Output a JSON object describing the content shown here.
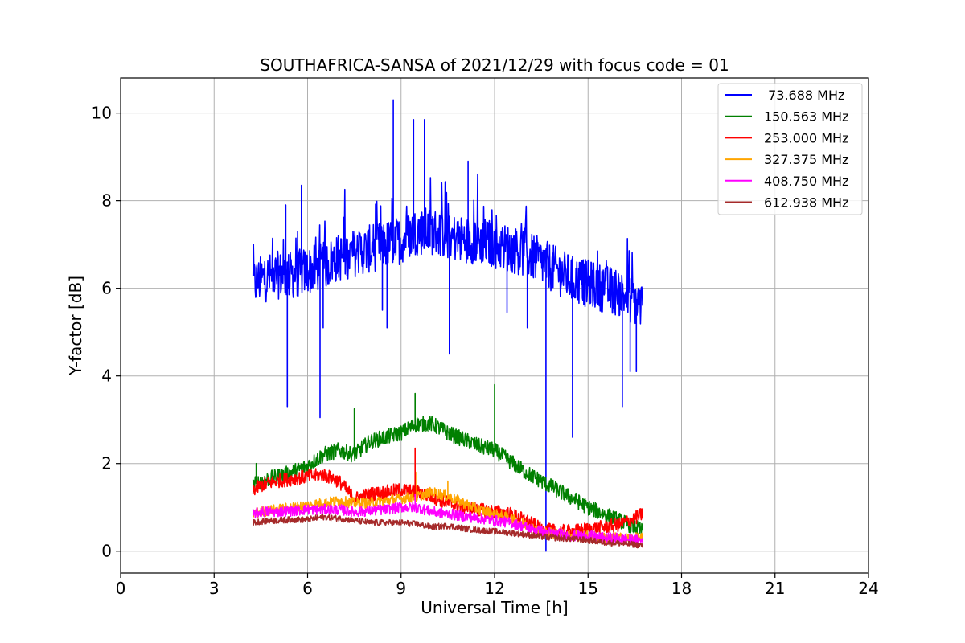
{
  "chart_data": {
    "type": "line",
    "title": "SOUTHAFRICA-SANSA of 2021/12/29 with focus code = 01",
    "xlabel": "Universal Time [h]",
    "ylabel": "Y-factor [dB]",
    "xlim": [
      0,
      24
    ],
    "ylim": [
      -0.5,
      10.8
    ],
    "xticks": [
      0,
      3,
      6,
      9,
      12,
      15,
      18,
      21,
      24
    ],
    "xtick_labels": [
      "0",
      "3",
      "6",
      "9",
      "12",
      "15",
      "18",
      "21",
      "24"
    ],
    "yticks": [
      0,
      2,
      4,
      6,
      8,
      10
    ],
    "ytick_labels": [
      "0",
      "2",
      "4",
      "6",
      "8",
      "10"
    ],
    "grid": true,
    "legend_position": "top-right",
    "series": [
      {
        "name": " 73.688 MHz",
        "color": "#0000ff",
        "x": [
          4.25,
          4.5,
          5.0,
          5.5,
          6.0,
          6.5,
          7.0,
          7.5,
          8.0,
          8.5,
          9.0,
          9.5,
          10.0,
          10.5,
          11.0,
          11.5,
          12.0,
          12.5,
          13.0,
          13.5,
          14.0,
          14.5,
          15.0,
          15.5,
          16.0,
          16.5,
          16.75
        ],
        "y": [
          6.1,
          6.2,
          6.3,
          6.3,
          6.4,
          6.5,
          6.7,
          6.8,
          6.9,
          7.0,
          7.1,
          7.3,
          7.3,
          7.2,
          7.1,
          7.1,
          7.0,
          6.9,
          6.8,
          6.6,
          6.4,
          6.2,
          6.1,
          6.0,
          5.9,
          5.7,
          5.6
        ],
        "spikes": [
          {
            "x": 5.3,
            "y": 7.9
          },
          {
            "x": 5.35,
            "y": 3.3
          },
          {
            "x": 5.8,
            "y": 8.35
          },
          {
            "x": 6.4,
            "y": 3.05
          },
          {
            "x": 6.5,
            "y": 5.1
          },
          {
            "x": 8.4,
            "y": 5.5
          },
          {
            "x": 8.55,
            "y": 5.1
          },
          {
            "x": 8.75,
            "y": 10.3
          },
          {
            "x": 9.4,
            "y": 9.85
          },
          {
            "x": 9.75,
            "y": 9.85
          },
          {
            "x": 10.55,
            "y": 4.5
          },
          {
            "x": 11.15,
            "y": 8.9
          },
          {
            "x": 12.4,
            "y": 5.45
          },
          {
            "x": 13.05,
            "y": 5.1
          },
          {
            "x": 13.65,
            "y": 0.0
          },
          {
            "x": 14.5,
            "y": 2.6
          },
          {
            "x": 16.1,
            "y": 3.3
          },
          {
            "x": 16.35,
            "y": 4.1
          },
          {
            "x": 16.55,
            "y": 4.1
          }
        ]
      },
      {
        "name": "150.563 MHz",
        "color": "#008000",
        "x": [
          4.25,
          4.5,
          5.0,
          5.5,
          6.0,
          6.5,
          7.0,
          7.5,
          8.0,
          8.5,
          9.0,
          9.5,
          10.0,
          10.5,
          11.0,
          11.5,
          12.0,
          12.5,
          13.0,
          13.5,
          14.0,
          14.5,
          15.0,
          15.5,
          16.0,
          16.5,
          16.75
        ],
        "y": [
          1.5,
          1.6,
          1.7,
          1.8,
          1.95,
          2.2,
          2.3,
          2.2,
          2.5,
          2.6,
          2.7,
          2.9,
          2.9,
          2.7,
          2.55,
          2.4,
          2.3,
          2.05,
          1.8,
          1.6,
          1.4,
          1.2,
          1.0,
          0.85,
          0.7,
          0.55,
          0.45
        ],
        "spikes": [
          {
            "x": 4.35,
            "y": 2.0
          },
          {
            "x": 7.5,
            "y": 3.25
          },
          {
            "x": 9.45,
            "y": 3.6
          },
          {
            "x": 12.0,
            "y": 3.8
          }
        ]
      },
      {
        "name": "253.000 MHz",
        "color": "#ff0000",
        "x": [
          4.25,
          4.5,
          5.0,
          5.5,
          6.0,
          6.5,
          7.0,
          7.5,
          8.0,
          8.5,
          9.0,
          9.5,
          10.0,
          10.5,
          11.0,
          11.5,
          12.0,
          12.5,
          13.0,
          13.5,
          14.0,
          14.5,
          15.0,
          15.5,
          16.0,
          16.5,
          16.75
        ],
        "y": [
          1.4,
          1.5,
          1.6,
          1.65,
          1.7,
          1.75,
          1.6,
          1.2,
          1.3,
          1.35,
          1.4,
          1.35,
          1.25,
          1.1,
          1.0,
          0.95,
          0.9,
          0.85,
          0.7,
          0.5,
          0.45,
          0.45,
          0.5,
          0.55,
          0.6,
          0.75,
          0.85
        ],
        "spikes": [
          {
            "x": 9.45,
            "y": 2.35
          }
        ]
      },
      {
        "name": "327.375 MHz",
        "color": "#ffa500",
        "x": [
          4.25,
          4.5,
          5.0,
          5.5,
          6.0,
          6.5,
          7.0,
          7.5,
          8.0,
          8.5,
          9.0,
          9.5,
          10.0,
          10.5,
          11.0,
          11.5,
          12.0,
          12.5,
          13.0,
          13.5,
          14.0,
          14.5,
          15.0,
          15.5,
          16.0,
          16.5,
          16.75
        ],
        "y": [
          0.85,
          0.9,
          0.95,
          1.0,
          1.05,
          1.1,
          1.15,
          1.1,
          1.1,
          1.15,
          1.2,
          1.25,
          1.35,
          1.25,
          1.1,
          0.95,
          0.85,
          0.75,
          0.6,
          0.45,
          0.4,
          0.35,
          0.35,
          0.3,
          0.3,
          0.3,
          0.3
        ],
        "spikes": [
          {
            "x": 9.5,
            "y": 1.8
          },
          {
            "x": 10.5,
            "y": 1.6
          }
        ]
      },
      {
        "name": "408.750 MHz",
        "color": "#ff00ff",
        "x": [
          4.25,
          4.5,
          5.0,
          5.5,
          6.0,
          6.5,
          7.0,
          7.5,
          8.0,
          8.5,
          9.0,
          9.5,
          10.0,
          10.5,
          11.0,
          11.5,
          12.0,
          12.5,
          13.0,
          13.5,
          14.0,
          14.5,
          15.0,
          15.5,
          16.0,
          16.5,
          16.75
        ],
        "y": [
          0.85,
          0.9,
          0.9,
          0.92,
          0.95,
          0.95,
          0.95,
          0.9,
          0.92,
          0.95,
          1.0,
          1.0,
          0.9,
          0.85,
          0.8,
          0.75,
          0.7,
          0.65,
          0.55,
          0.45,
          0.4,
          0.35,
          0.35,
          0.3,
          0.3,
          0.25,
          0.25
        ],
        "spikes": [
          {
            "x": 9.45,
            "y": 1.3
          }
        ]
      },
      {
        "name": "612.938 MHz",
        "color": "#a52a2a",
        "x": [
          4.25,
          4.5,
          5.0,
          5.5,
          6.0,
          6.5,
          7.0,
          7.5,
          8.0,
          8.5,
          9.0,
          9.5,
          10.0,
          10.5,
          11.0,
          11.5,
          12.0,
          12.5,
          13.0,
          13.5,
          14.0,
          14.5,
          15.0,
          15.5,
          16.0,
          16.5,
          16.75
        ],
        "y": [
          0.65,
          0.68,
          0.7,
          0.72,
          0.72,
          0.78,
          0.75,
          0.7,
          0.65,
          0.65,
          0.65,
          0.62,
          0.55,
          0.58,
          0.52,
          0.48,
          0.45,
          0.42,
          0.38,
          0.33,
          0.3,
          0.28,
          0.25,
          0.2,
          0.18,
          0.15,
          0.13
        ],
        "spikes": []
      }
    ]
  }
}
